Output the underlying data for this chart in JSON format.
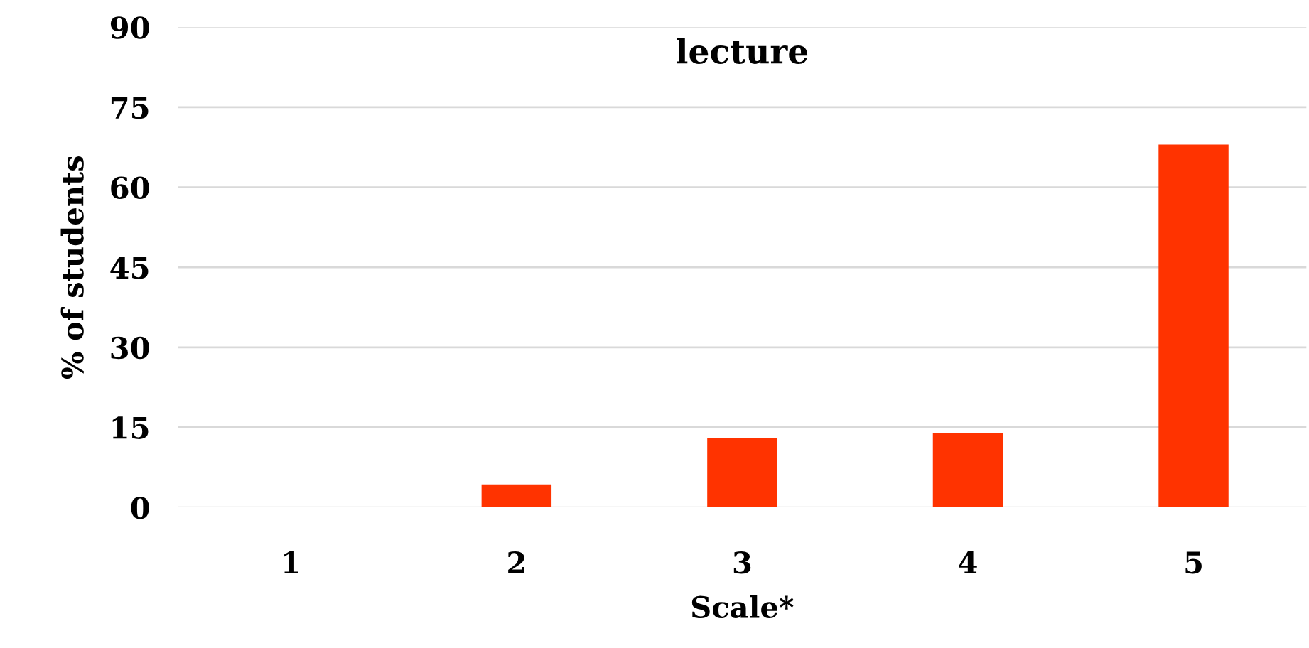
{
  "chart_data": {
    "type": "bar",
    "title": "lecture",
    "xlabel": "Scale*",
    "ylabel": "% of students",
    "categories": [
      "1",
      "2",
      "3",
      "4",
      "5"
    ],
    "values": [
      0,
      4.3,
      13,
      14,
      68
    ],
    "color": "#ff3300",
    "ylim": [
      0,
      90
    ],
    "yticks": [
      0,
      15,
      30,
      45,
      60,
      75,
      90
    ],
    "grid": "y",
    "legend": false
  }
}
